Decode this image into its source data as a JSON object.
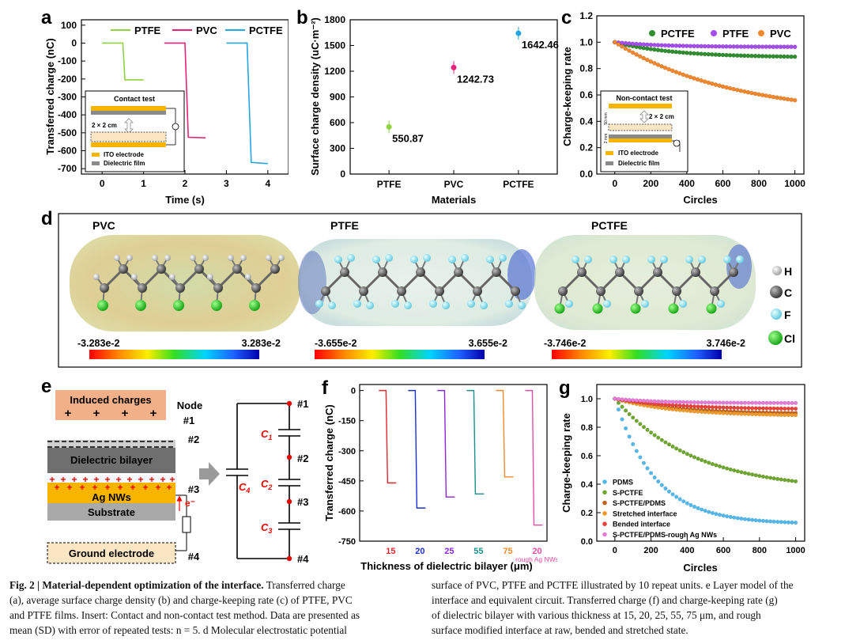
{
  "panel_letters": {
    "a": "a",
    "b": "b",
    "c": "c",
    "d": "d",
    "e": "e",
    "f": "f",
    "g": "g"
  },
  "colors": {
    "PTFE": "#8ed23d",
    "PVC": "#e8217a",
    "PCTFE": "#22a7e0",
    "green_dark": "#2f8f2f",
    "purple": "#a64df0",
    "orange": "#f5882a",
    "f15": "#e0262f",
    "f20": "#1b2fd0",
    "f25": "#8b26d8",
    "f55": "#1a8f8a",
    "f75": "#f08a2a",
    "frough": "#e64da6",
    "gPDMS": "#52b8ec",
    "gSPCTFE": "#6ea62e",
    "gSPCTFEPDMS": "#c1621d",
    "gStretched": "#f09a2a",
    "gBended": "#e8413a",
    "gRough": "#e67ad6"
  },
  "chart_data": [
    {
      "id": "a",
      "type": "line",
      "xlabel": "Time (s)",
      "ylabel": "Transferred charge (nC)",
      "xlim": [
        -0.5,
        4.5
      ],
      "ylim": [
        -730,
        130
      ],
      "xticks": [
        "0",
        "1",
        "2",
        "3",
        "4"
      ],
      "yticks": [
        "100",
        "0",
        "-100",
        "-200",
        "-300",
        "-400",
        "-500",
        "-600",
        "-700"
      ],
      "series": [
        {
          "name": "PTFE",
          "x": [
            0,
            0.5,
            0.55,
            1.0
          ],
          "y": [
            0,
            0,
            -205,
            -205
          ]
        },
        {
          "name": "PVC",
          "x": [
            1.5,
            2.0,
            2.08,
            2.5
          ],
          "y": [
            0,
            0,
            -525,
            -528
          ]
        },
        {
          "name": "PCTFE",
          "x": [
            3.0,
            3.5,
            3.6,
            4.0
          ],
          "y": [
            0,
            0,
            -665,
            -672
          ]
        }
      ],
      "inset": {
        "title": "Contact test",
        "size_label": "2 × 2 cm",
        "legend": [
          "ITO electrode",
          "Dielectric film"
        ]
      }
    },
    {
      "id": "b",
      "type": "scatter",
      "xlabel": "Materials",
      "ylabel": "Surface charge density (uC·m⁻²)",
      "categories": [
        "PTFE",
        "PVC",
        "PCTFE"
      ],
      "values": [
        550.87,
        1242.73,
        1642.46
      ],
      "value_labels": [
        "550.87",
        "1242.73",
        "1642.46"
      ],
      "ylim": [
        0,
        1800
      ],
      "yticks": [
        "0",
        "300",
        "600",
        "900",
        "1200",
        "1500",
        "1800"
      ]
    },
    {
      "id": "c",
      "type": "scatter",
      "xlabel": "Circles",
      "ylabel": "Charge-keeping rate",
      "xlim": [
        -100,
        1050
      ],
      "ylim": [
        0,
        1.2
      ],
      "xticks": [
        "0",
        "200",
        "400",
        "600",
        "800",
        "1000"
      ],
      "yticks": [
        "0.0",
        "0.2",
        "0.4",
        "0.6",
        "0.8",
        "1.0",
        "1.2"
      ],
      "series": [
        {
          "name": "PCTFE",
          "end": 0.89,
          "k": 0.003
        },
        {
          "name": "PTFE",
          "end": 0.965,
          "k": 0.004
        },
        {
          "name": "PVC",
          "end": 0.56,
          "k": 0.0015
        }
      ],
      "inset": {
        "title": "Non-contact test",
        "size_label": "2 × 2 cm",
        "gap1": "50 mm",
        "gap2": "2 mm",
        "legend": [
          "ITO electrode",
          "Dielectric film"
        ]
      }
    },
    {
      "id": "f",
      "type": "line",
      "xlabel": "Thickness of dielectric bilayer (μm)",
      "ylabel": "Transferred charge (nC)",
      "ylim": [
        -750,
        30
      ],
      "yticks": [
        "0",
        "-150",
        "-300",
        "-450",
        "-600",
        "-750"
      ],
      "categories": [
        "15",
        "20",
        "25",
        "55",
        "75",
        "20"
      ],
      "category_sub": "rough Ag NWs",
      "values": [
        -460,
        -585,
        -530,
        -515,
        -430,
        -670
      ]
    },
    {
      "id": "g",
      "type": "scatter",
      "xlabel": "Circles",
      "ylabel": "Charge-keeping rate",
      "xlim": [
        -100,
        1050
      ],
      "ylim": [
        0,
        1.1
      ],
      "xticks": [
        "0",
        "200",
        "400",
        "600",
        "800",
        "1000"
      ],
      "yticks": [
        "0.0",
        "0.2",
        "0.4",
        "0.6",
        "0.8",
        "1.0"
      ],
      "series": [
        {
          "name": "PDMS",
          "end": 0.13,
          "k": 0.0045
        },
        {
          "name": "S-PCTFE",
          "end": 0.42,
          "k": 0.0023
        },
        {
          "name": "S-PCTFE/PDMS",
          "end": 0.9,
          "k": 0.003
        },
        {
          "name": "Stretched interface",
          "end": 0.885,
          "k": 0.003
        },
        {
          "name": "Bended interface",
          "end": 0.93,
          "k": 0.003
        },
        {
          "name": "S-PCTFE/PDMS-rough Ag NWs",
          "end": 0.97,
          "k": 0.004
        }
      ]
    }
  ],
  "panel_d": {
    "molecules": [
      "PVC",
      "PTFE",
      "PCTFE"
    ],
    "scales": [
      [
        "-3.283e-2",
        "3.283e-2"
      ],
      [
        "-3.655e-2",
        "3.655e-2"
      ],
      [
        "-3.746e-2",
        "3.746e-2"
      ]
    ],
    "atoms": [
      "H",
      "C",
      "F",
      "Cl"
    ]
  },
  "panel_e": {
    "induced": "Induced charges",
    "node": "Node",
    "layers": [
      "Dielectric bilayer",
      "Ag NWs",
      "Substrate"
    ],
    "ground": "Ground electrode",
    "nodes": [
      "#1",
      "#2",
      "#3",
      "#4"
    ],
    "electron": "e⁻",
    "caps": [
      "C",
      "C",
      "C",
      "C"
    ],
    "cap_subs": [
      "1",
      "2",
      "3",
      "4"
    ]
  },
  "caption": {
    "fig": "Fig. 2 | Material-dependent optimization of the interface.",
    "l1a": " Transferred charge",
    "l2": "(a), average surface charge density (b) and charge-keeping rate (c) of PTFE, PVC",
    "l3": "and PTFE films. Insert: Contact and non-contact test method. Data are presented as",
    "l4": "mean (SD) with error of repeated tests: n = 5. d Molecular electrostatic potential",
    "r1": "surface of PVC, PTFE and PCTFE illustrated by 10 repeat units. e Layer model of the",
    "r2": "interface and equivalent circuit. Transferred charge (f) and charge-keeping rate (g)",
    "r3": "of dielectric bilayer with various thickness at 15, 20, 25, 55, 75 μm, and rough",
    "r4": "surface modified interface at raw, bended and stretched state."
  }
}
